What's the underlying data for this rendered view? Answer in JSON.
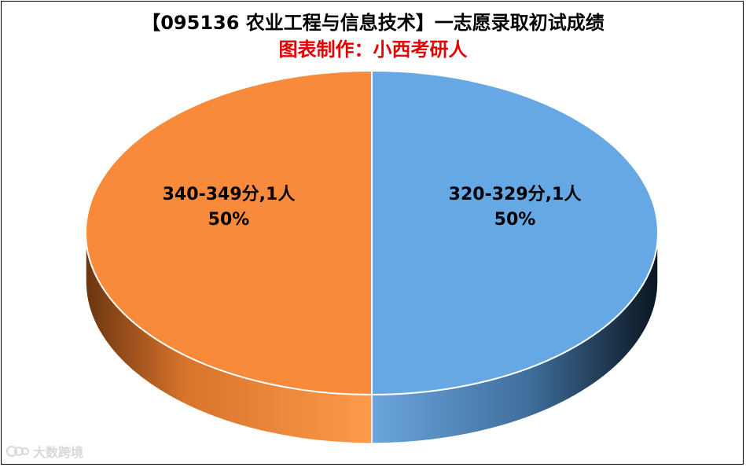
{
  "chart_data": {
    "type": "pie",
    "title": "【095136 农业工程与信息技术】一志愿录取初试成绩",
    "subtitle": "图表制作：小西考研人",
    "categories": [
      "320-329分",
      "340-349分"
    ],
    "values": [
      1,
      1
    ],
    "unit": "人",
    "percents": [
      "50%",
      "50%"
    ],
    "data_labels": [
      {
        "line1": "320-329分,1人",
        "line2": "50%"
      },
      {
        "line1": "340-349分,1人",
        "line2": "50%"
      }
    ],
    "colors": [
      "#65a8e3",
      "#f88a3c"
    ],
    "style": "3d",
    "legend": "none"
  },
  "watermark": {
    "text": "大数跨境",
    "color": "#d8d8d8"
  }
}
